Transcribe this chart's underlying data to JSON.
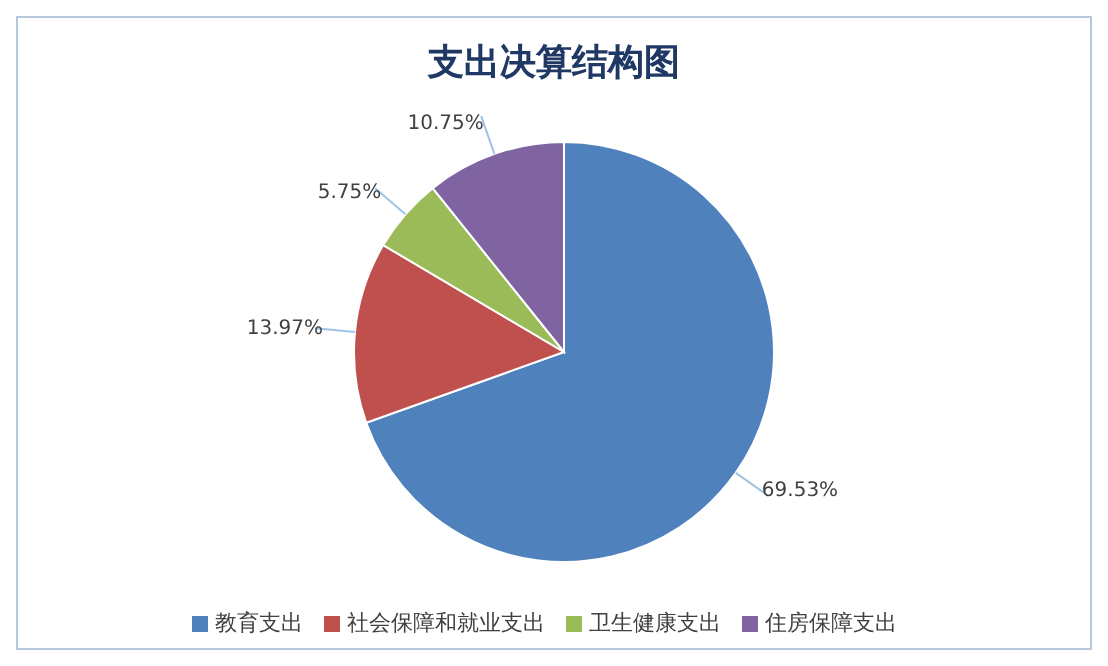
{
  "chart_data": {
    "type": "pie",
    "title": "支出决算结构图",
    "categories": [
      "教育支出",
      "社会保障和就业支出",
      "卫生健康支出",
      "住房保障支出"
    ],
    "values": [
      69.53,
      13.97,
      5.75,
      10.75
    ],
    "colors": [
      "#4f81bd",
      "#c0504d",
      "#9bbb59",
      "#8064a2"
    ],
    "value_labels": [
      "69.53%",
      "13.97%",
      "5.75%",
      "10.75%"
    ],
    "legend": "bottom"
  }
}
